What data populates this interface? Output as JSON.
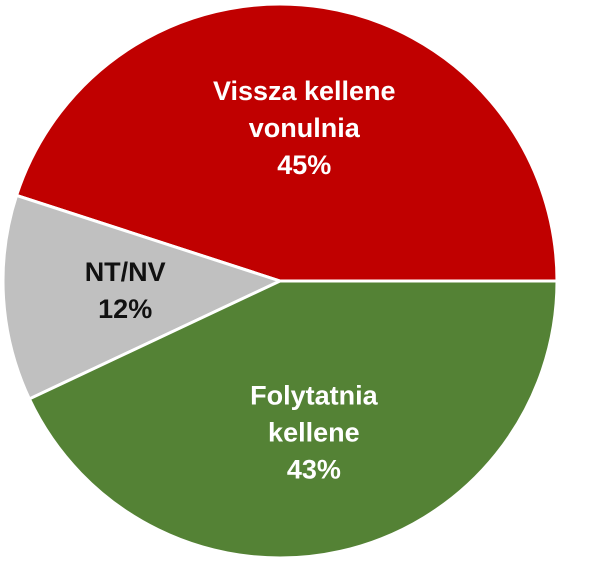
{
  "chart_data": {
    "type": "pie",
    "title": "",
    "start_angle_deg": 0,
    "direction": "counterclockwise",
    "legend": "none",
    "slices": [
      {
        "label_lines": [
          "Vissza kellene",
          "vonulnia"
        ],
        "percent_label": "45%",
        "value": 45,
        "color": "#c00000",
        "text_color": "#ffffff"
      },
      {
        "label_lines": [
          "NT/NV"
        ],
        "percent_label": "12%",
        "value": 12,
        "color": "#c0c0c0",
        "text_color": "#111111"
      },
      {
        "label_lines": [
          "Folytatnia",
          "kellene"
        ],
        "percent_label": "43%",
        "value": 43,
        "color": "#548235",
        "text_color": "#ffffff"
      }
    ]
  }
}
